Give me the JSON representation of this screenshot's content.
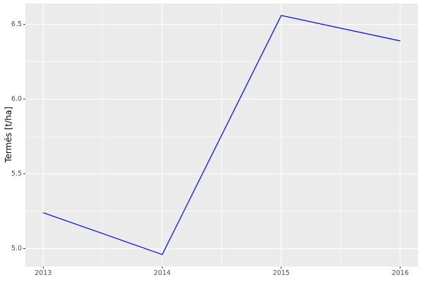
{
  "figure": {
    "background_color": "#FFFFFF"
  },
  "chart_data": {
    "type": "line",
    "title": "",
    "xlabel": "",
    "ylabel": "Termés [t/ha]",
    "x": [
      2013,
      2014,
      2015,
      2016
    ],
    "series": [
      {
        "name": "Termés [t/ha]",
        "values": [
          5.24,
          4.96,
          6.56,
          6.39
        ]
      }
    ],
    "x_tick_values": [
      2013,
      2014,
      2015,
      2016
    ],
    "x_tick_labels": [
      "2013",
      "2014",
      "2015",
      "2016"
    ],
    "y_tick_values": [
      5.0,
      5.5,
      6.0,
      6.5
    ],
    "y_tick_labels": [
      "5.0",
      "5.5",
      "6.0",
      "6.5"
    ],
    "x_minor_tick_values": [
      2013.5,
      2014.5,
      2015.5
    ],
    "y_minor_tick_values": [
      5.25,
      5.75,
      6.25
    ],
    "xlim": [
      2012.85,
      2016.15
    ],
    "ylim": [
      4.88,
      6.64
    ],
    "grid": "white major and minor gridlines on grey panel",
    "legend": "none",
    "colors": {
      "line": "#0000FF",
      "panel_bg": "#EBEBEB",
      "grid_major": "#FFFFFF",
      "grid_minor": "#FFFFFF",
      "tick_label": "#4D4D4D",
      "tick_mark": "#333333",
      "axis_title": "#000000"
    }
  }
}
